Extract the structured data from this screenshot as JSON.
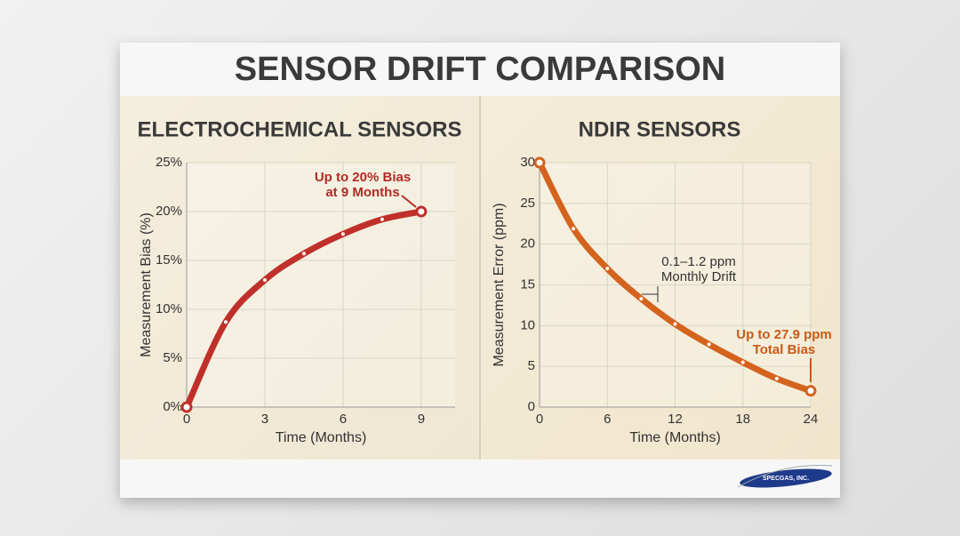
{
  "title": "SENSOR DRIFT COMPARISON",
  "logo": "SPECGAS, INC.",
  "chart_data": [
    {
      "type": "line",
      "title": "ELECTROCHEMICAL SENSORS",
      "x_label": "Time (Months)",
      "y_label": "Measurement Bias (%)",
      "x": [
        0,
        1.5,
        3,
        4.5,
        6,
        7.5,
        9
      ],
      "values": [
        0,
        8.7,
        13,
        15.7,
        17.7,
        19.2,
        20
      ],
      "color": "#c0302a",
      "xlim": [
        0,
        10.3
      ],
      "ylim": [
        0,
        25
      ],
      "xticks": [
        0,
        3,
        6,
        9
      ],
      "yticks": [
        {
          "value": 0,
          "label": "0%"
        },
        {
          "value": 5,
          "label": "5%"
        },
        {
          "value": 10,
          "label": "10%"
        },
        {
          "value": 15,
          "label": "15%"
        },
        {
          "value": 20,
          "label": "20%"
        },
        {
          "value": 25,
          "label": "25%"
        }
      ],
      "grid": true,
      "annotations": [
        [
          "Up to 20% Bias",
          "at 9 Months"
        ]
      ]
    },
    {
      "type": "line",
      "title": "NDIR SENSORS",
      "x_label": "Time (Months)",
      "y_label": "Measurement Error (ppm)",
      "x": [
        0,
        3,
        6,
        9,
        12,
        15,
        18,
        21,
        24
      ],
      "values": [
        30,
        21.9,
        17,
        13.3,
        10.2,
        7.7,
        5.5,
        3.5,
        2
      ],
      "color": "#d4631e",
      "xlim": [
        0,
        24
      ],
      "ylim": [
        0,
        30
      ],
      "xticks": [
        0,
        6,
        12,
        18,
        24
      ],
      "yticks": [
        0,
        5,
        10,
        15,
        20,
        25,
        30
      ],
      "grid": true,
      "annotations": [
        [
          "0.1–1.2 ppm",
          "Monthly Drift"
        ],
        [
          "Up to 27.9 ppm",
          "Total Bias"
        ]
      ]
    }
  ]
}
